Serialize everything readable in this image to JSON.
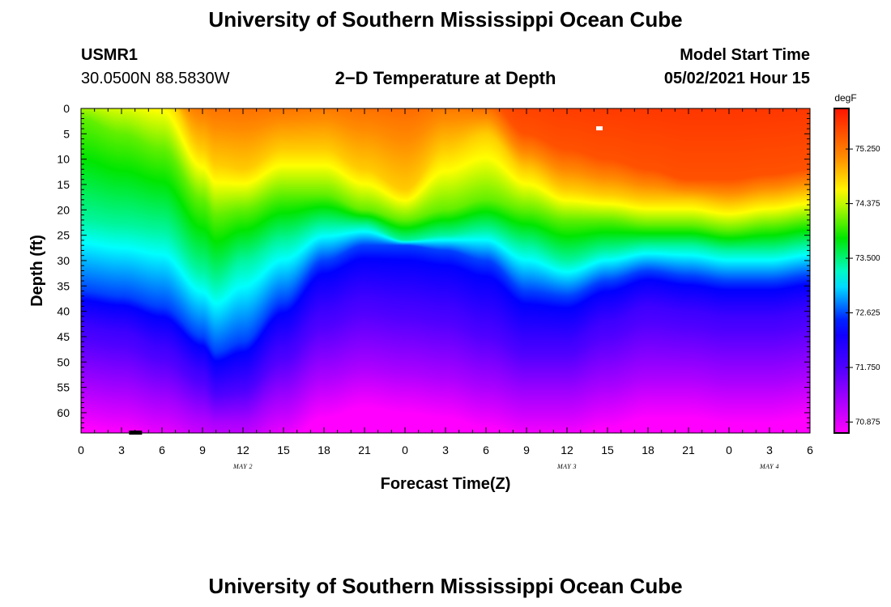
{
  "page": {
    "title_top": "University of Southern Mississippi Ocean Cube",
    "title_bottom": "University of Southern Mississippi Ocean Cube"
  },
  "station": {
    "id": "USMR1",
    "coords": "30.0500N  88.5830W"
  },
  "model": {
    "start_label": "Model Start Time",
    "start_value": "05/02/2021 Hour 15"
  },
  "chart_data": {
    "type": "heatmap",
    "title": "2−D Temperature at Depth",
    "xlabel": "Forecast Time(Z)",
    "ylabel": "Depth (ft)",
    "x_hours": [
      0,
      3,
      6,
      9,
      12,
      15,
      18,
      21,
      24,
      27,
      30,
      33,
      36,
      39,
      42,
      45,
      48,
      51,
      54
    ],
    "x_tick_labels": [
      "0",
      "3",
      "6",
      "9",
      "12",
      "15",
      "18",
      "21",
      "0",
      "3",
      "6",
      "9",
      "12",
      "15",
      "18",
      "21",
      "0",
      "3",
      "6"
    ],
    "date_labels": [
      {
        "text": "MAY 2",
        "hour": 12
      },
      {
        "text": "MAY 3",
        "hour": 36
      },
      {
        "text": "MAY 4",
        "hour": 51
      }
    ],
    "xlim": [
      0,
      54
    ],
    "ylim": [
      0,
      64
    ],
    "y_ticks": [
      0,
      5,
      10,
      15,
      20,
      25,
      30,
      35,
      40,
      45,
      50,
      55,
      60
    ],
    "y_tick_labels": [
      "0",
      "5",
      "10",
      "15",
      "20",
      "25",
      "30",
      "35",
      "40",
      "45",
      "50",
      "55",
      "60"
    ],
    "colorbar": {
      "units": "degF",
      "ticks": [
        75.25,
        74.375,
        73.5,
        72.625,
        71.75,
        70.875
      ],
      "tick_labels": [
        "75.250",
        "74.375",
        "73.500",
        "72.625",
        "71.750",
        "70.875"
      ],
      "range": [
        70.7,
        75.9
      ]
    },
    "isotherm_depths_ft": {
      "note": "approximate depth (ft) at which each temperature is reached, per forecast hour",
      "hours": [
        0,
        3,
        6,
        9,
        10,
        12,
        15,
        18,
        21,
        24,
        27,
        30,
        33,
        36,
        39,
        42,
        45,
        48,
        51,
        54
      ],
      "t75_5": [
        -5,
        -5,
        -5,
        -5,
        -5,
        -5,
        -4,
        -5,
        -5,
        -5,
        -5,
        -2,
        5,
        8,
        10,
        12,
        14,
        14,
        13,
        12
      ],
      "t74_8": [
        -5,
        -5,
        -4,
        8,
        11,
        12,
        8,
        8,
        12,
        16,
        8,
        5,
        12,
        16,
        17,
        18,
        18,
        19,
        18,
        17
      ],
      "t74_1": [
        2,
        5,
        8,
        18,
        21,
        20,
        17,
        17,
        20,
        22,
        20,
        18,
        20,
        22,
        22,
        23,
        23,
        24,
        23,
        22
      ],
      "t73_4": [
        22,
        23,
        24,
        32,
        34,
        30,
        26,
        23,
        23,
        26,
        25,
        24,
        27,
        30,
        28,
        27,
        27,
        28,
        28,
        27
      ],
      "t72_6": [
        36,
        37,
        39,
        45,
        48,
        46,
        38,
        30,
        27,
        27,
        28,
        30,
        36,
        37,
        34,
        32,
        33,
        34,
        34,
        33
      ],
      "t71_9": [
        43,
        44,
        47,
        52,
        55,
        54,
        47,
        40,
        37,
        38,
        39,
        42,
        46,
        46,
        42,
        39,
        40,
        41,
        41,
        40
      ],
      "t71_2": [
        55,
        56,
        58,
        61,
        62,
        62,
        58,
        53,
        51,
        52,
        53,
        55,
        57,
        57,
        55,
        53,
        53,
        54,
        54,
        53
      ]
    },
    "markers": [
      {
        "hour": 38.4,
        "depth": 4,
        "color": "#ffffff"
      },
      {
        "hour": 3.8,
        "depth": 64,
        "color": "#000000"
      }
    ]
  }
}
